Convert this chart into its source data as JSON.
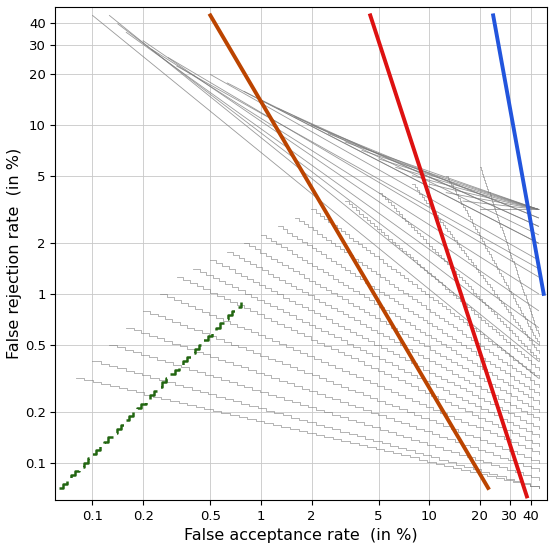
{
  "xlabel": "False acceptance rate  (in %)",
  "ylabel": "False rejection rate  (in %)",
  "xlim_log": [
    -1.22,
    1.7
  ],
  "ylim_log": [
    -1.22,
    1.7
  ],
  "xticks": [
    0.1,
    0.2,
    0.5,
    1,
    2,
    5,
    10,
    20,
    30,
    40
  ],
  "yticks": [
    0.1,
    0.2,
    0.5,
    1,
    2,
    5,
    10,
    20,
    30,
    40
  ],
  "grid_color": "#c8c8c8",
  "blue_color": "#2255dd",
  "red_color": "#dd1111",
  "brown_color": "#bb4400",
  "green_color": "#226611",
  "gray_color": "#777777",
  "gray_lw": 0.6,
  "thick_lw": 2.8
}
